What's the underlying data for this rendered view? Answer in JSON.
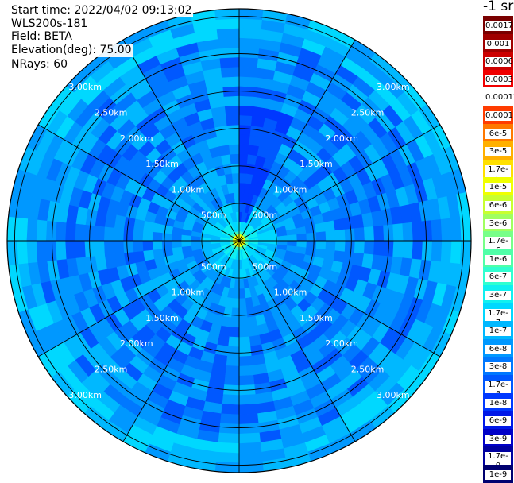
{
  "header": {
    "start_time": "Start time: 2022/04/02 09:13:02",
    "instrument": "WLS200s-181",
    "field": "Field: BETA",
    "elevation": "Elevation(deg): 75.00",
    "nrays": "NRays: 60"
  },
  "colorbar": {
    "units": "-1 sr",
    "entries": [
      {
        "label": "0.0017",
        "color": "#7a0000"
      },
      {
        "label": "0.001",
        "color": "#a00000"
      },
      {
        "label": "0.0006",
        "color": "#cc0000"
      },
      {
        "label": "0.0003",
        "color": "#f00000"
      },
      {
        "label": "0.00017",
        "color": "#ffffff"
      },
      {
        "label": "0.0001",
        "color": "#ff3c00"
      },
      {
        "label": "6e-5",
        "color": "#ff7800"
      },
      {
        "label": "3e-5",
        "color": "#ffb000"
      },
      {
        "label": "1.7e-5",
        "color": "#ffe000"
      },
      {
        "label": "1e-5",
        "color": "#f0ff00"
      },
      {
        "label": "6e-6",
        "color": "#c8ff30"
      },
      {
        "label": "3e-6",
        "color": "#a0ff60"
      },
      {
        "label": "1.7e-6",
        "color": "#78ff88"
      },
      {
        "label": "1e-6",
        "color": "#50ffa8"
      },
      {
        "label": "6e-7",
        "color": "#30ffd0"
      },
      {
        "label": "3e-7",
        "color": "#10f0f0"
      },
      {
        "label": "1.7e-7",
        "color": "#00d8ff"
      },
      {
        "label": "1e-7",
        "color": "#00b8ff"
      },
      {
        "label": "6e-8",
        "color": "#0098ff"
      },
      {
        "label": "3e-8",
        "color": "#0078ff"
      },
      {
        "label": "1.7e-8",
        "color": "#0058ff"
      },
      {
        "label": "1e-8",
        "color": "#0038ff"
      },
      {
        "label": "6e-9",
        "color": "#0018e8"
      },
      {
        "label": "3e-9",
        "color": "#0000c8"
      },
      {
        "label": "1.7e-9",
        "color": "#0000a0"
      },
      {
        "label": "1e-9",
        "color": "#000070"
      }
    ]
  },
  "range_rings": {
    "labels": [
      "500m",
      "1.00km",
      "1.50km",
      "2.00km",
      "2.50km",
      "3.00km"
    ],
    "ranges_m": [
      500,
      1000,
      1500,
      2000,
      2500,
      3000
    ],
    "max_range_m": 3100,
    "ray_count": 60
  }
}
